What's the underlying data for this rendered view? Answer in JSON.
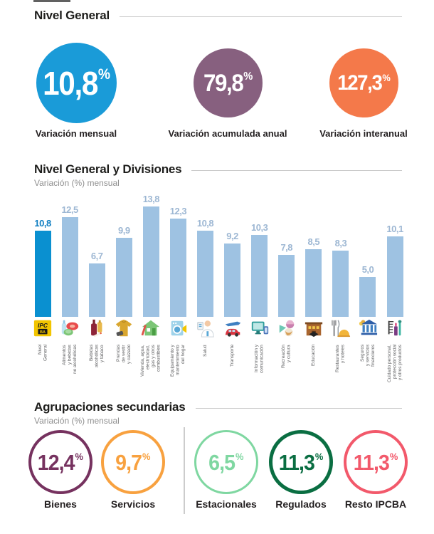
{
  "sections": {
    "nivel_general": {
      "title": "Nivel General",
      "circles": [
        {
          "value": "10,8",
          "pct": "%",
          "label": "Variación mensual",
          "color": "#1a9bd8"
        },
        {
          "value": "79,8",
          "pct": "%",
          "label": "Variación acumulada anual",
          "color": "#87607f"
        },
        {
          "value": "127,3",
          "pct": "%",
          "label": "Variación interanual",
          "color": "#f4794a"
        }
      ]
    },
    "divisiones": {
      "title": "Nivel General y Divisiones",
      "subtitle": "Variación (%) mensual"
    },
    "agrupaciones": {
      "title": "Agrupaciones secundarias",
      "subtitle": "Variación (%) mensual",
      "circles": [
        {
          "value": "12,4",
          "pct": "%",
          "label": "Bienes",
          "color": "#76325f",
          "ring": 4
        },
        {
          "value": "9,7",
          "pct": "%",
          "label": "Servicios",
          "color": "#f8a13f",
          "ring": 4
        },
        {
          "value": "6,5",
          "pct": "%",
          "label": "Estacionales",
          "color": "#7fd7a1",
          "ring": 3
        },
        {
          "value": "11,3",
          "pct": "%",
          "label": "Regulados",
          "color": "#0a6e42",
          "ring": 5
        },
        {
          "value": "11,3",
          "pct": "%",
          "label": "Resto IPCBA",
          "color": "#f2596b",
          "ring": 4
        }
      ]
    }
  },
  "chart_data": {
    "type": "bar",
    "title": "Nivel General y Divisiones",
    "subtitle": "Variación (%) mensual",
    "ylim": [
      0,
      14
    ],
    "grid": false,
    "legend": "none",
    "categories": [
      "Nivel General",
      "Alimentos y bebidas no alcohólicas",
      "Bebidas alcohólicas y tabaco",
      "Prendas de vestir y calzado",
      "Vivienda, agua, electricidad, gas y otros combustibles",
      "Equipamiento y mantenimiento del hogar",
      "Salud",
      "Transporte",
      "Información y comunicación",
      "Recreación y cultura",
      "Educación",
      "Restaurantes y hoteles",
      "Seguros y servicios financieros",
      "Cuidado personal, protección social y otros productos"
    ],
    "category_lines": [
      [
        "Nivel",
        "General"
      ],
      [
        "Alimentos",
        "y bebidas",
        "no alcohólicas"
      ],
      [
        "Bebidas",
        "alcohólicas",
        "y tabaco"
      ],
      [
        "Prendas",
        "de vestir",
        "y calzado"
      ],
      [
        "Vivienda, agua,",
        "electricidad,",
        "gas y otros",
        "combustibles"
      ],
      [
        "Equipamiento y",
        "mantenimiento",
        "del hogar"
      ],
      [
        "Salud"
      ],
      [
        "Transporte"
      ],
      [
        "Información y",
        "comunicación"
      ],
      [
        "Recreación",
        "y cultura"
      ],
      [
        "Educación"
      ],
      [
        "Restaurantes",
        "y hoteles"
      ],
      [
        "Seguros",
        "y servicios",
        "financieros"
      ],
      [
        "Cuidado personal,",
        "protección social",
        "y otros productos"
      ]
    ],
    "values": [
      10.8,
      12.5,
      6.7,
      9.9,
      13.8,
      12.3,
      10.8,
      9.2,
      10.3,
      7.8,
      8.5,
      8.3,
      5.0,
      10.1
    ],
    "value_labels": [
      "10,8",
      "12,5",
      "6,7",
      "9,9",
      "13,8",
      "12,3",
      "10,8",
      "9,2",
      "10,3",
      "7,8",
      "8,5",
      "8,3",
      "5,0",
      "10,1"
    ],
    "highlight_index": 0,
    "bar_color": "#9ec2e2",
    "highlight_color": "#0a90d0",
    "label_color": "#9db7d3",
    "highlight_label_color": "#0d7dc1",
    "icons": [
      "ipc-ba-logo",
      "food",
      "alcohol-tobacco",
      "clothing",
      "housing",
      "home-equipment",
      "health",
      "transport",
      "information",
      "recreation",
      "education",
      "restaurants",
      "insurance",
      "personal-care"
    ]
  }
}
